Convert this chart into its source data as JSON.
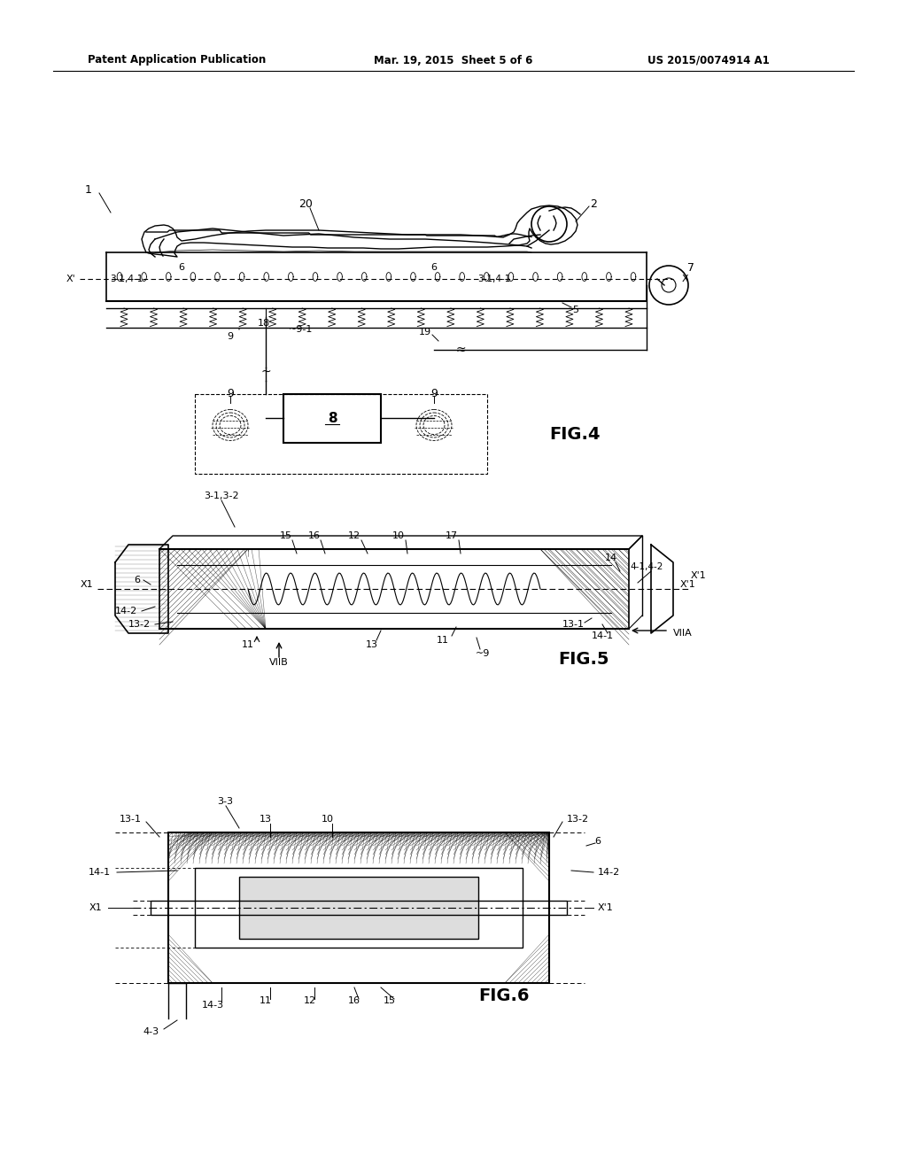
{
  "bg_color": "#ffffff",
  "text_color": "#000000",
  "header_left": "Patent Application Publication",
  "header_mid": "Mar. 19, 2015  Sheet 5 of 6",
  "header_right": "US 2015/0074914 A1",
  "fig4_label": "FIG.4",
  "fig5_label": "FIG.5",
  "fig6_label": "FIG.6"
}
